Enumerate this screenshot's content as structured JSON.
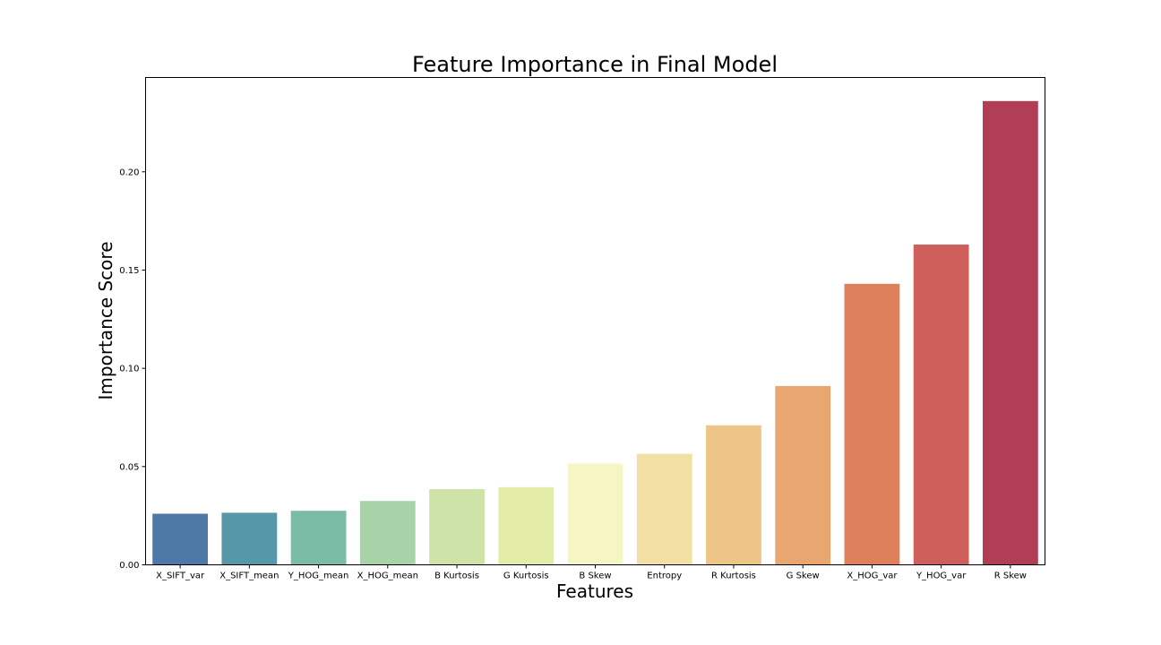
{
  "chart_data": {
    "type": "bar",
    "title": "Feature Importance in Final Model",
    "xlabel": "Features",
    "ylabel": "Importance Score",
    "categories": [
      "X_SIFT_var",
      "X_SIFT_mean",
      "Y_HOG_mean",
      "X_HOG_mean",
      "B Kurtosis",
      "G Kurtosis",
      "B Skew",
      "Entropy",
      "R Kurtosis",
      "G Skew",
      "X_HOG_var",
      "Y_HOG_var",
      "R Skew"
    ],
    "values": [
      0.026,
      0.0265,
      0.0275,
      0.0325,
      0.0385,
      0.0395,
      0.0515,
      0.0565,
      0.071,
      0.091,
      0.143,
      0.163,
      0.236
    ],
    "colors": [
      "#4e79a7",
      "#5698a8",
      "#7abca5",
      "#a8d3a9",
      "#cde3a8",
      "#e4eda8",
      "#f6f6c4",
      "#f2dfa4",
      "#edc687",
      "#e8a770",
      "#df805c",
      "#ce5f5b",
      "#b13e54"
    ],
    "ylim": [
      0,
      0.248
    ],
    "yticks": [
      0.0,
      0.05,
      0.1,
      0.15,
      0.2
    ],
    "ytick_labels": [
      "0.00",
      "0.05",
      "0.10",
      "0.15",
      "0.20"
    ],
    "grid": false,
    "legend": "none"
  }
}
